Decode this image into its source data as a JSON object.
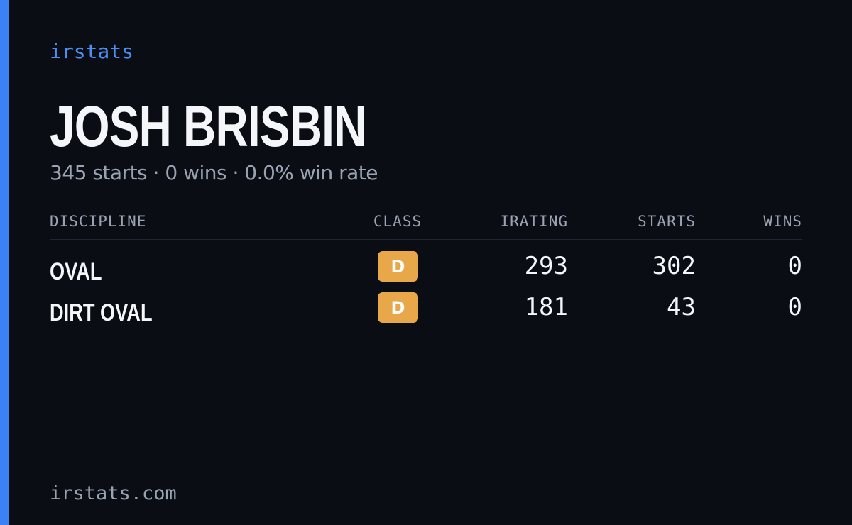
{
  "brand": "irstats",
  "driver": {
    "name": "JOSH BRISBIN",
    "summary": "345 starts · 0 wins · 0.0% win rate"
  },
  "table": {
    "columns": [
      "DISCIPLINE",
      "CLASS",
      "IRATING",
      "STARTS",
      "WINS"
    ],
    "rows": [
      [
        "OVAL",
        "D",
        293,
        302,
        0
      ],
      [
        "DIRT OVAL",
        "D",
        181,
        43,
        0
      ]
    ]
  },
  "footer": "irstats.com"
}
